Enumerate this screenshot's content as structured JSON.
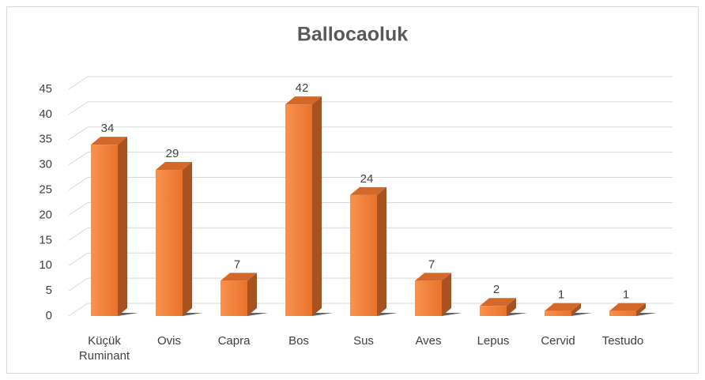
{
  "chart_data": {
    "type": "bar3d",
    "title": "Ballocaoluk",
    "categories": [
      "Küçük Ruminant",
      "Ovis",
      "Capra",
      "Bos",
      "Sus",
      "Aves",
      "Lepus",
      "Cervid",
      "Testudo"
    ],
    "values": [
      34,
      29,
      7,
      42,
      24,
      7,
      2,
      1,
      1
    ],
    "color": "#ed7d31",
    "ylim": [
      0,
      45
    ],
    "yticks": [
      0,
      5,
      10,
      15,
      20,
      25,
      30,
      35,
      40,
      45
    ],
    "grid": true,
    "data_labels": true
  }
}
